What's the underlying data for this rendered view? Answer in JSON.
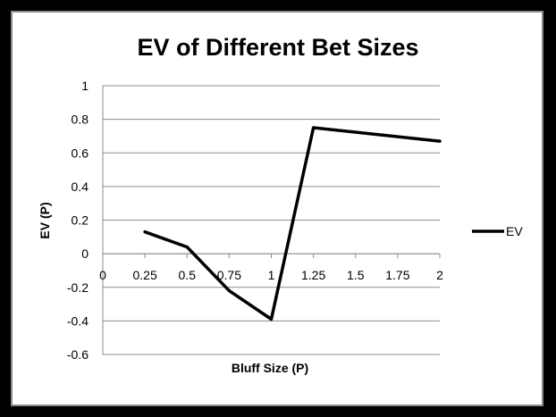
{
  "chart_data": {
    "type": "line",
    "title": "EV of Different Bet Sizes",
    "xlabel": "Bluff Size (P)",
    "ylabel": "EV (P)",
    "xlim": [
      0,
      2
    ],
    "ylim": [
      -0.6,
      1
    ],
    "x_ticks": [
      "0",
      "0.25",
      "0.5",
      "0.75",
      "1",
      "1.25",
      "1.5",
      "1.75",
      "2"
    ],
    "y_ticks": [
      "1",
      "0.8",
      "0.6",
      "0.4",
      "0.2",
      "0",
      "-0.2",
      "-0.4",
      "-0.6"
    ],
    "grid": "horizontal",
    "legend": "right",
    "series": [
      {
        "name": "EV",
        "color": "#000000",
        "x": [
          0.25,
          0.5,
          0.75,
          1,
          1.25,
          2
        ],
        "y": [
          0.13,
          0.04,
          -0.22,
          -0.39,
          0.75,
          0.67
        ]
      }
    ]
  }
}
